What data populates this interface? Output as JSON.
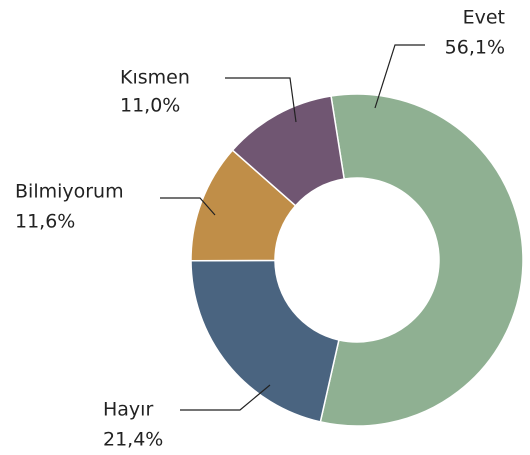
{
  "chart_data": {
    "type": "pie",
    "categories": [
      "Evet",
      "Hayır",
      "Bilmiyorum",
      "Kısmen"
    ],
    "values": [
      56.1,
      21.4,
      11.6,
      11.0
    ],
    "value_labels": [
      "56,1%",
      "21,4%",
      "11,6%",
      "11,0%"
    ],
    "colors": [
      "#8fb092",
      "#4a6480",
      "#c08e48",
      "#705672"
    ],
    "donut": true
  }
}
